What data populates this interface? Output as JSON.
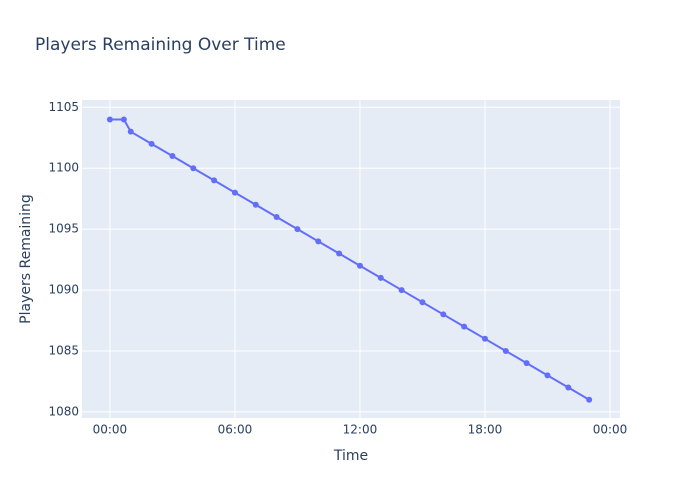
{
  "chart_data": {
    "type": "line",
    "title": "Players Remaining Over Time",
    "x_label": "Time",
    "y_label": "Players Remaining",
    "x": [
      0,
      0.67,
      1,
      2,
      3,
      4,
      5,
      6,
      7,
      8,
      9,
      10,
      11,
      12,
      13,
      14,
      15,
      16,
      17,
      18,
      19,
      20,
      21,
      22,
      23
    ],
    "series": [
      {
        "color": "#636efa",
        "values": [
          1104,
          1104,
          1103,
          1102,
          1101,
          1100,
          1099,
          1098,
          1097,
          1096,
          1095,
          1094,
          1093,
          1092,
          1091,
          1090,
          1089,
          1088,
          1087,
          1086,
          1085,
          1084,
          1083,
          1082,
          1081
        ]
      }
    ],
    "xlim": [
      -1.34,
      24.48
    ],
    "xticks": [
      {
        "value": 0,
        "label": "00:00"
      },
      {
        "value": 6,
        "label": "06:00"
      },
      {
        "value": 12,
        "label": "12:00"
      },
      {
        "value": 18,
        "label": "18:00"
      },
      {
        "value": 24,
        "label": "00:00"
      }
    ],
    "ylim": [
      1079.5,
      1105.6
    ],
    "yticks": [
      1080,
      1085,
      1090,
      1095,
      1100,
      1105
    ],
    "grid": true
  }
}
